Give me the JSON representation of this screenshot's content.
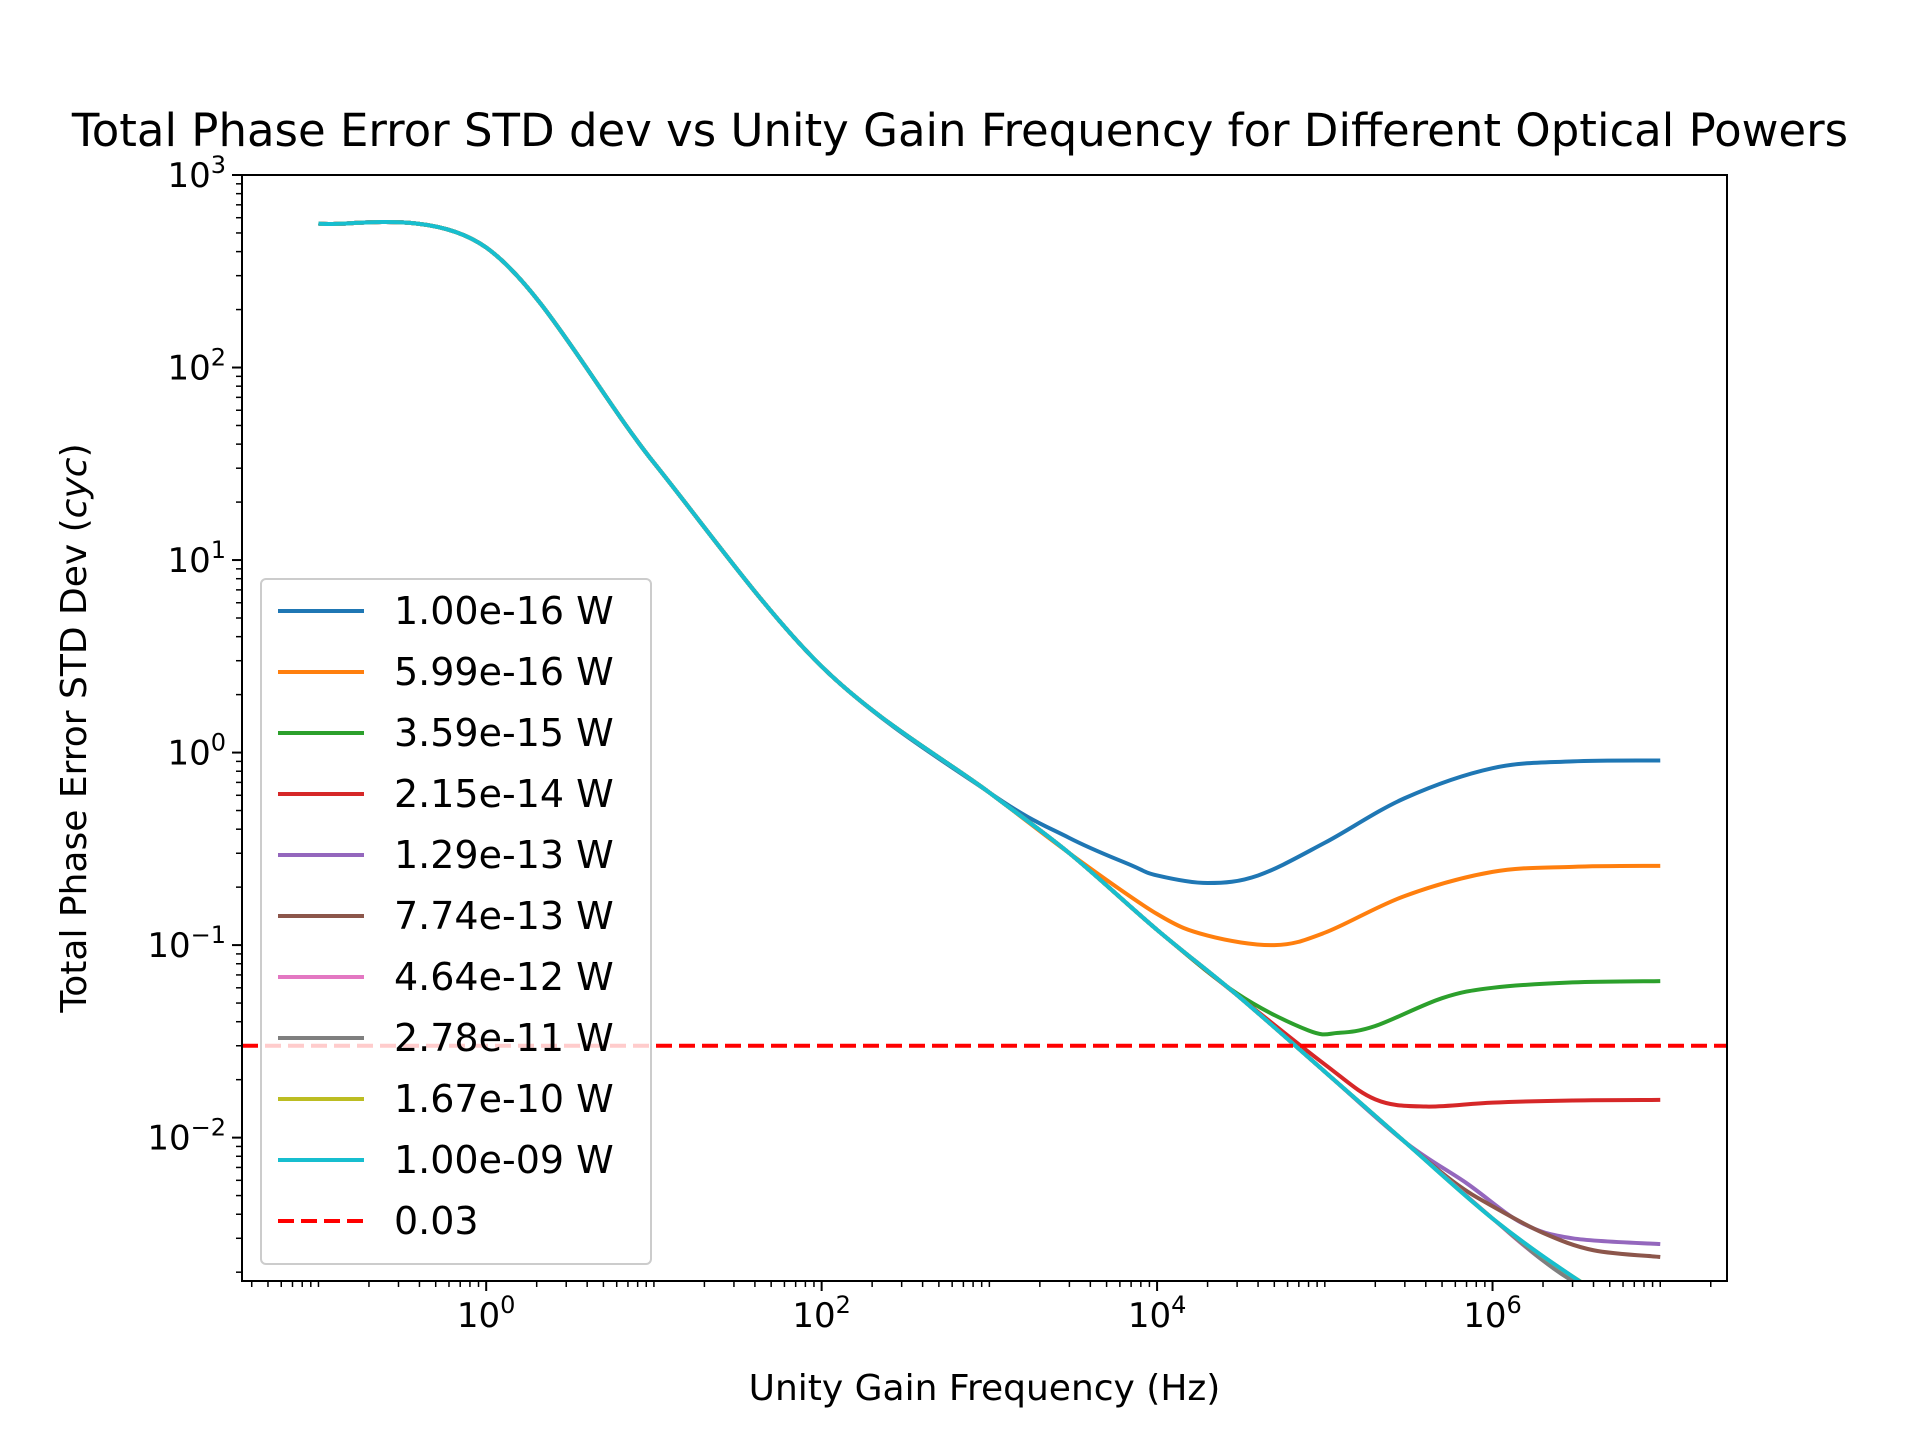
{
  "chart_data": {
    "type": "line",
    "title": "Total Phase Error STD dev vs Unity Gain Frequency for Different Optical Powers",
    "xlabel": "Unity Gain Frequency (Hz)",
    "ylabel_main": "Total Phase Error STD Dev (",
    "ylabel_unit": "cyc",
    "ylabel_close": ")",
    "x_scale": "log",
    "y_scale": "log",
    "xlim": [
      0.035,
      25000000.0
    ],
    "ylim": [
      0.0018,
      1000
    ],
    "x_ticks": [
      {
        "value": 1,
        "base": "10",
        "exp": "0"
      },
      {
        "value": 100,
        "base": "10",
        "exp": "2"
      },
      {
        "value": 10000,
        "base": "10",
        "exp": "4"
      },
      {
        "value": 1000000,
        "base": "10",
        "exp": "6"
      }
    ],
    "y_ticks": [
      {
        "value": 0.01,
        "base": "10",
        "exp": "−2"
      },
      {
        "value": 0.1,
        "base": "10",
        "exp": "−1"
      },
      {
        "value": 1,
        "base": "10",
        "exp": "0"
      },
      {
        "value": 10,
        "base": "10",
        "exp": "1"
      },
      {
        "value": 100,
        "base": "10",
        "exp": "2"
      },
      {
        "value": 1000,
        "base": "10",
        "exp": "3"
      }
    ],
    "grid": false,
    "legend_position": "lower-left",
    "base_curve": {
      "x": [
        0.1,
        0.2,
        0.4,
        0.7,
        1,
        2,
        5,
        10,
        20,
        50,
        100,
        200,
        400,
        700,
        1000,
        3000,
        10000,
        30000,
        100000,
        300000,
        1000000,
        3000000,
        10000000
      ],
      "y": [
        560,
        550,
        520,
        470,
        420,
        240,
        80,
        32,
        14,
        5,
        2.8,
        1.85,
        1.22,
        0.82,
        0.62,
        0.3,
        0.12,
        0.055,
        0.022,
        0.0095,
        0.0038,
        0.0019,
        0.00098
      ]
    },
    "series": [
      {
        "name": "1.00e-16 W",
        "color": "#1f77b4",
        "x": [
          0.1,
          1,
          10,
          100,
          1000,
          3000,
          7000,
          10000,
          20000,
          40000,
          100000,
          300000,
          1000000,
          3000000,
          10000000
        ],
        "y": [
          560,
          420,
          32,
          2.8,
          0.62,
          0.36,
          0.26,
          0.23,
          0.21,
          0.23,
          0.34,
          0.58,
          0.83,
          0.9,
          0.91
        ]
      },
      {
        "name": "5.99e-16 W",
        "color": "#ff7f0e",
        "x": [
          0.1,
          1,
          10,
          100,
          1000,
          3000,
          10000,
          20000,
          50000,
          100000,
          300000,
          1000000,
          3000000,
          10000000
        ],
        "y": [
          560,
          420,
          32,
          2.8,
          0.62,
          0.3,
          0.145,
          0.112,
          0.1,
          0.116,
          0.18,
          0.24,
          0.255,
          0.258
        ]
      },
      {
        "name": "3.59e-15 W",
        "color": "#2ca02c",
        "x": [
          0.1,
          1,
          10,
          100,
          1000,
          3000,
          10000,
          30000,
          80000,
          120000,
          200000,
          500000,
          1000000,
          3000000,
          10000000
        ],
        "y": [
          560,
          420,
          32,
          2.8,
          0.62,
          0.3,
          0.12,
          0.056,
          0.036,
          0.035,
          0.038,
          0.053,
          0.06,
          0.064,
          0.065
        ]
      },
      {
        "name": "2.15e-14 W",
        "color": "#d62728",
        "x": [
          0.1,
          1,
          10,
          100,
          1000,
          3000,
          10000,
          30000,
          100000,
          200000,
          400000,
          1000000,
          3000000,
          10000000
        ],
        "y": [
          560,
          420,
          32,
          2.8,
          0.62,
          0.3,
          0.12,
          0.055,
          0.024,
          0.0158,
          0.0145,
          0.0152,
          0.0156,
          0.0157
        ]
      },
      {
        "name": "1.29e-13 W",
        "color": "#9467bd",
        "x": [
          0.1,
          1,
          10,
          100,
          1000,
          3000,
          10000,
          30000,
          100000,
          300000,
          700000,
          1500000,
          3000000,
          10000000
        ],
        "y": [
          560,
          420,
          32,
          2.8,
          0.62,
          0.3,
          0.12,
          0.055,
          0.022,
          0.0095,
          0.0058,
          0.0036,
          0.003,
          0.0028
        ]
      },
      {
        "name": "7.74e-13 W",
        "color": "#8c564b",
        "x": [
          0.1,
          1,
          10,
          100,
          1000,
          3000,
          10000,
          30000,
          100000,
          300000,
          600000,
          1000000,
          2000000,
          4000000,
          10000000
        ],
        "y": [
          560,
          420,
          32,
          2.8,
          0.62,
          0.3,
          0.12,
          0.055,
          0.022,
          0.0095,
          0.0058,
          0.0044,
          0.0032,
          0.0026,
          0.0024
        ]
      },
      {
        "name": "4.64e-12 W",
        "color": "#e377c2",
        "x": [
          0.1,
          1,
          10,
          100,
          1000,
          3000,
          10000,
          30000,
          100000,
          300000,
          1000000,
          2000000,
          4000000,
          10000000
        ],
        "y": [
          560,
          420,
          32,
          2.8,
          0.62,
          0.3,
          0.12,
          0.055,
          0.022,
          0.0095,
          0.0038,
          0.0023,
          0.0016,
          0.00125
        ]
      },
      {
        "name": "2.78e-11 W",
        "color": "#7f7f7f",
        "x": [
          0.1,
          1,
          10,
          100,
          1000,
          3000,
          10000,
          30000,
          100000,
          300000,
          1000000,
          3000000,
          10000000
        ],
        "y": [
          560,
          420,
          32,
          2.8,
          0.62,
          0.3,
          0.12,
          0.055,
          0.022,
          0.0095,
          0.0038,
          0.0018,
          0.00115
        ]
      },
      {
        "name": "1.67e-10 W",
        "color": "#bcbd22",
        "x": [
          0.1,
          1,
          10,
          100,
          1000,
          3000,
          10000,
          30000,
          100000,
          300000,
          1000000,
          3000000,
          10000000
        ],
        "y": [
          560,
          420,
          32,
          2.8,
          0.62,
          0.3,
          0.12,
          0.055,
          0.022,
          0.0095,
          0.0038,
          0.0019,
          0.00102
        ]
      },
      {
        "name": "1.00e-09 W",
        "color": "#17becf",
        "x": [
          0.1,
          1,
          10,
          100,
          1000,
          3000,
          10000,
          30000,
          100000,
          300000,
          1000000,
          3000000,
          10000000
        ],
        "y": [
          560,
          420,
          32,
          2.8,
          0.62,
          0.3,
          0.12,
          0.055,
          0.022,
          0.0095,
          0.0038,
          0.0019,
          0.00098
        ]
      }
    ],
    "hline": {
      "name": "0.03",
      "value": 0.03,
      "color": "#ff0000",
      "style": "dashed"
    }
  }
}
